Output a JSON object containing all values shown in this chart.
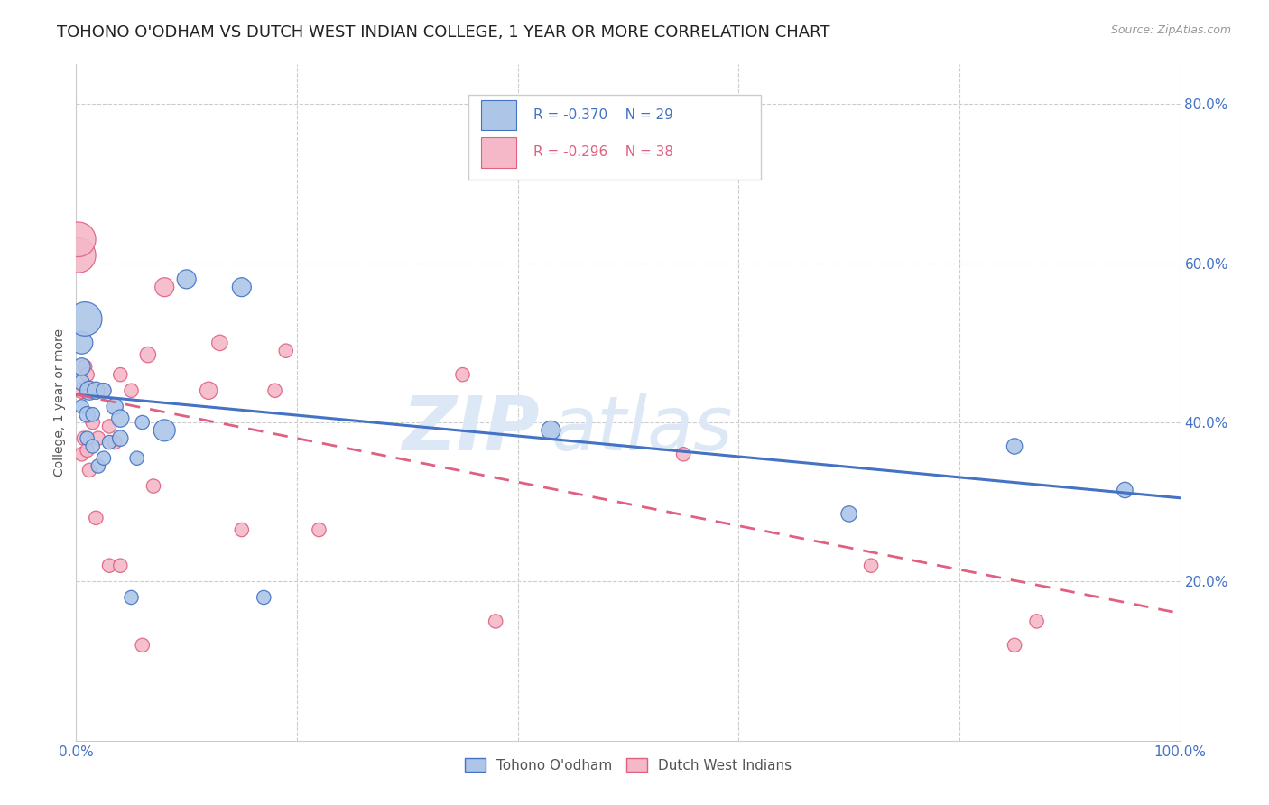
{
  "title": "TOHONO O'ODHAM VS DUTCH WEST INDIAN COLLEGE, 1 YEAR OR MORE CORRELATION CHART",
  "source": "Source: ZipAtlas.com",
  "ylabel": "College, 1 year or more",
  "xlim": [
    0.0,
    1.0
  ],
  "ylim": [
    0.0,
    0.85
  ],
  "xticks": [
    0.0,
    0.2,
    0.4,
    0.6,
    0.8,
    1.0
  ],
  "xticklabels": [
    "0.0%",
    "",
    "",
    "",
    "",
    "100.0%"
  ],
  "yticks": [
    0.0,
    0.2,
    0.4,
    0.6,
    0.8
  ],
  "yticklabels": [
    "",
    "20.0%",
    "40.0%",
    "60.0%",
    "80.0%"
  ],
  "blue_label": "Tohono O'odham",
  "pink_label": "Dutch West Indians",
  "blue_R": "R = -0.370",
  "blue_N": "N = 29",
  "pink_R": "R = -0.296",
  "pink_N": "N = 38",
  "blue_scatter_color": "#adc6e8",
  "pink_scatter_color": "#f4b8c8",
  "blue_line_color": "#4472c4",
  "pink_line_color": "#e06080",
  "legend_text_color": "#4472c4",
  "watermark_color": "#dce8f5",
  "watermark": "ZIPatlas",
  "blue_scatter_x": [
    0.005,
    0.005,
    0.005,
    0.005,
    0.008,
    0.01,
    0.01,
    0.012,
    0.015,
    0.015,
    0.018,
    0.02,
    0.025,
    0.025,
    0.03,
    0.035,
    0.04,
    0.04,
    0.05,
    0.055,
    0.06,
    0.08,
    0.1,
    0.15,
    0.17,
    0.43,
    0.7,
    0.85,
    0.95
  ],
  "blue_scatter_y": [
    0.42,
    0.45,
    0.47,
    0.5,
    0.53,
    0.38,
    0.41,
    0.44,
    0.37,
    0.41,
    0.44,
    0.345,
    0.355,
    0.44,
    0.375,
    0.42,
    0.38,
    0.405,
    0.18,
    0.355,
    0.4,
    0.39,
    0.58,
    0.57,
    0.18,
    0.39,
    0.285,
    0.37,
    0.315
  ],
  "blue_scatter_size": [
    35,
    45,
    55,
    90,
    210,
    35,
    45,
    65,
    35,
    35,
    55,
    35,
    35,
    40,
    35,
    50,
    45,
    55,
    35,
    35,
    35,
    85,
    65,
    65,
    35,
    65,
    45,
    45,
    45
  ],
  "pink_scatter_x": [
    0.002,
    0.002,
    0.005,
    0.005,
    0.007,
    0.008,
    0.01,
    0.01,
    0.012,
    0.015,
    0.018,
    0.02,
    0.025,
    0.03,
    0.03,
    0.035,
    0.04,
    0.04,
    0.05,
    0.06,
    0.065,
    0.07,
    0.08,
    0.12,
    0.13,
    0.15,
    0.18,
    0.19,
    0.22,
    0.35,
    0.38,
    0.55,
    0.72,
    0.85,
    0.87
  ],
  "pink_scatter_y": [
    0.61,
    0.63,
    0.36,
    0.44,
    0.38,
    0.47,
    0.365,
    0.46,
    0.34,
    0.4,
    0.28,
    0.38,
    0.44,
    0.22,
    0.395,
    0.375,
    0.22,
    0.46,
    0.44,
    0.12,
    0.485,
    0.32,
    0.57,
    0.44,
    0.5,
    0.265,
    0.44,
    0.49,
    0.265,
    0.46,
    0.15,
    0.36,
    0.22,
    0.12,
    0.15
  ],
  "pink_scatter_size": [
    220,
    220,
    35,
    45,
    35,
    35,
    35,
    35,
    35,
    35,
    35,
    35,
    35,
    35,
    35,
    35,
    35,
    35,
    35,
    35,
    45,
    35,
    65,
    55,
    45,
    35,
    35,
    35,
    35,
    35,
    35,
    35,
    35,
    35,
    35
  ],
  "blue_line_x": [
    0.0,
    1.0
  ],
  "blue_line_y": [
    0.435,
    0.305
  ],
  "pink_line_x": [
    0.0,
    1.0
  ],
  "pink_line_y": [
    0.435,
    0.16
  ],
  "background_color": "#ffffff",
  "grid_color": "#cccccc",
  "title_fontsize": 13,
  "axis_label_fontsize": 10,
  "tick_fontsize": 11,
  "tick_color": "#4472c4"
}
